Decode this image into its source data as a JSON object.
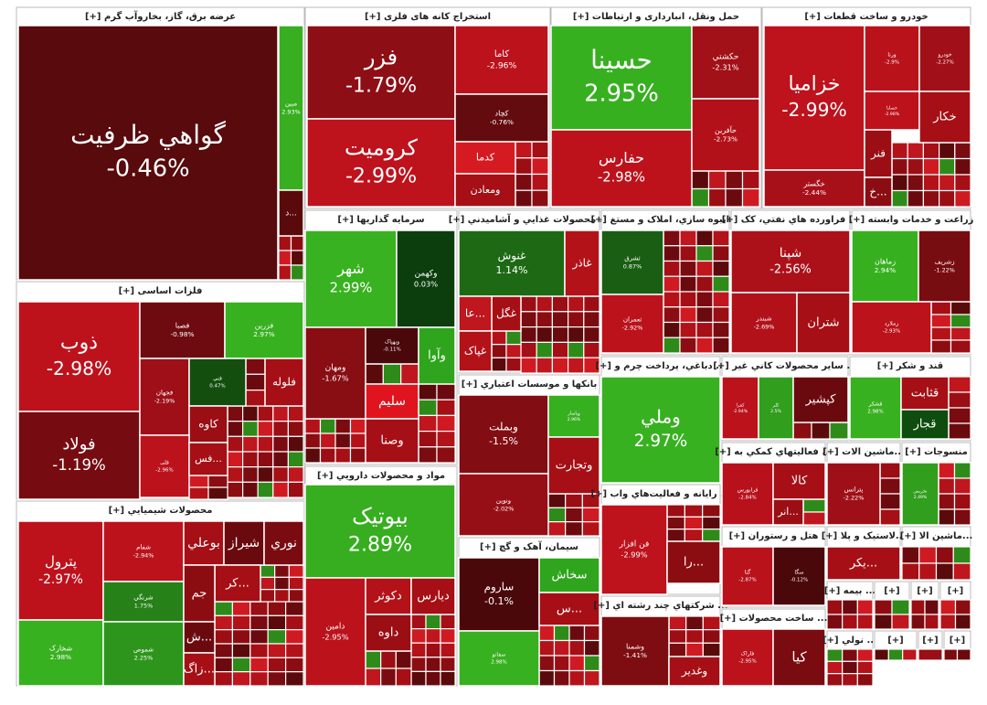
{
  "chart_data": {
    "type": "treemap",
    "sectors": [
      {
        "title": "عرضه برق، گاز، بخاروآب گرم [+]",
        "tiles": [
          {
            "name": "گواهي ظرفيت",
            "value": -0.46,
            "value_label": "-0.46%"
          },
          {
            "name": "مبين",
            "value": 2.93,
            "value_label": "2.93%"
          },
          {
            "name": "...د"
          }
        ]
      },
      {
        "title": "استخراج کانه های فلزی [+]",
        "tiles": [
          {
            "name": "فزر",
            "value": -1.79,
            "value_label": "-1.79%"
          },
          {
            "name": "کروميت",
            "value": -2.99,
            "value_label": "-2.99%"
          },
          {
            "name": "کاما",
            "value": -2.96,
            "value_label": "-2.96%"
          },
          {
            "name": "کچاد",
            "value": -0.76,
            "value_label": "-0.76%"
          },
          {
            "name": "کدما"
          },
          {
            "name": "ومعادن"
          }
        ]
      },
      {
        "title": "حمل ونقل، انبارداری و ارتباطات [+]",
        "tiles": [
          {
            "name": "حسينا",
            "value": 2.95,
            "value_label": "2.95%"
          },
          {
            "name": "حفارس",
            "value": -2.98,
            "value_label": "-2.98%"
          },
          {
            "name": "حکشتي",
            "value": -2.31,
            "value_label": "-2.31%"
          },
          {
            "name": "حآفرين",
            "value": -2.73,
            "value_label": "-2.73%"
          }
        ]
      },
      {
        "title": "خودرو و ساخت قطعات [+]",
        "tiles": [
          {
            "name": "خزاميا",
            "value": -2.99,
            "value_label": "-2.99%"
          },
          {
            "name": "خگستر",
            "value": -2.44,
            "value_label": "-2.44%"
          },
          {
            "name": "ورنا",
            "value": -2.9,
            "value_label": "-2.9%"
          },
          {
            "name": "خودرو",
            "value": -2.27,
            "value_label": "-2.27%"
          },
          {
            "name": "خساپا",
            "value": -2.98,
            "value_label": "-2.98%"
          },
          {
            "name": "خکار"
          },
          {
            "name": "فنر"
          },
          {
            "name": "...خ"
          }
        ]
      },
      {
        "title": "سرمايه گذاريها [+]",
        "tiles": [
          {
            "name": "شهر",
            "value": 2.99,
            "value_label": "2.99%"
          },
          {
            "name": "وکهمن",
            "value": 0.03,
            "value_label": "0.03%"
          },
          {
            "name": "ومهان",
            "value": -1.67,
            "value_label": "-1.67%"
          },
          {
            "name": "وبهپاک",
            "value": -0.11,
            "value_label": "-0.11%"
          },
          {
            "name": "وآوا"
          },
          {
            "name": "سليم"
          },
          {
            "name": "وصنا"
          }
        ]
      },
      {
        "title": "... محصولات غذايي و آشاميدني [+]",
        "tiles": [
          {
            "name": "غنوش",
            "value": 1.14,
            "value_label": "1.14%"
          },
          {
            "name": "غاذر"
          },
          {
            "name": "غگل"
          },
          {
            "name": "...عا"
          },
          {
            "name": "غپاک"
          }
        ]
      },
      {
        "title": "...انبوه سازي، املاک و مستغ [+]",
        "tiles": [
          {
            "name": "ثشرق",
            "value": 0.87,
            "value_label": "0.87%"
          },
          {
            "name": "ثعمران",
            "value": -2.92,
            "value_label": "-2.92%"
          }
        ]
      },
      {
        "title": "... فراورده هاي نفتي، کک [+]",
        "tiles": [
          {
            "name": "شپنا",
            "value": -2.56,
            "value_label": "-2.56%"
          },
          {
            "name": "شبندر",
            "value": -2.69,
            "value_label": "-2.69%"
          },
          {
            "name": "شتران"
          }
        ]
      },
      {
        "title": "زراعت و خدمات وابسته [+]",
        "tiles": [
          {
            "name": "زماهان",
            "value": 2.94,
            "value_label": "2.94%"
          },
          {
            "name": "زشريف",
            "value": -1.22,
            "value_label": "-1.22%"
          },
          {
            "name": "زملارد",
            "value": -2.93,
            "value_label": "-2.93%"
          }
        ]
      },
      {
        "title": "فلزات اساسی [+]",
        "tiles": [
          {
            "name": "ذوب",
            "value": -2.98,
            "value_label": "-2.98%"
          },
          {
            "name": "فولاد",
            "value": -1.19,
            "value_label": "-1.19%"
          },
          {
            "name": "فصبا",
            "value": -0.98,
            "value_label": "-0.98%"
          },
          {
            "name": "فزرين",
            "value": 2.97,
            "value_label": "2.97%"
          },
          {
            "name": "فجهان",
            "value": -2.19,
            "value_label": "-2.19%"
          },
          {
            "name": "فني",
            "value": 0.47,
            "value_label": "0.47%"
          },
          {
            "name": "فلوله"
          },
          {
            "name": "کاوه"
          },
          {
            "name": "فلی",
            "value": -2.96,
            "value_label": "-2.96%"
          },
          {
            "name": "...فس"
          }
        ]
      },
      {
        "title": "محصولات شيميايي [+]",
        "tiles": [
          {
            "name": "پترول",
            "value": -2.97,
            "value_label": "-2.97%"
          },
          {
            "name": "شخارک",
            "value": 2.98,
            "value_label": "2.98%"
          },
          {
            "name": "شفام",
            "value": -2.94,
            "value_label": "-2.94%"
          },
          {
            "name": "شرنگي",
            "value": 1.75,
            "value_label": "1.75%"
          },
          {
            "name": "شموص",
            "value": 2.25,
            "value_label": "2.25%"
          },
          {
            "name": "بوعلي"
          },
          {
            "name": "شيراز"
          },
          {
            "name": "نوري"
          },
          {
            "name": "...کر"
          },
          {
            "name": "جم"
          },
          {
            "name": "...ش"
          },
          {
            "name": "...زاگ"
          }
        ]
      },
      {
        "title": "بانکها و موسسات اعتباري [+]",
        "tiles": [
          {
            "name": "وبملت",
            "value": -1.5,
            "value_label": "-1.5%"
          },
          {
            "name": "ونوين",
            "value": -2.02,
            "value_label": "-2.02%"
          },
          {
            "name": "وپاسار",
            "value": 2.96,
            "value_label": "2.96%"
          },
          {
            "name": "وتجارت"
          }
        ]
      },
      {
        "title": "... دباغي، پرداخت چرم و [+]",
        "tiles": [
          {
            "name": "وملي",
            "value": 2.97,
            "value_label": "2.97%"
          }
        ]
      },
      {
        "title": "... ساير محصولات کاني غير [+]",
        "tiles": [
          {
            "name": "کفرا",
            "value": -2.94,
            "value_label": "-2.94%"
          },
          {
            "name": "کلر",
            "value": 2.5,
            "value_label": "2.5%"
          },
          {
            "name": "کپشير"
          }
        ]
      },
      {
        "title": "قند و شکر [+]",
        "tiles": [
          {
            "name": "قشکر",
            "value": 2.98,
            "value_label": "2.98%"
          },
          {
            "name": "قثابت"
          },
          {
            "name": "قجار"
          }
        ]
      },
      {
        "title": "مواد و محصولات دارويي [+]",
        "tiles": [
          {
            "name": "بيوتيک",
            "value": 2.89,
            "value_label": "2.89%"
          },
          {
            "name": "دامين",
            "value": -2.95,
            "value_label": "-2.95%"
          },
          {
            "name": "دکوثر"
          },
          {
            "name": "ديارس"
          },
          {
            "name": "داوه"
          }
        ]
      },
      {
        "title": "سيمان، آهک و گچ [+]",
        "tiles": [
          {
            "name": "ساروم",
            "value": -0.1,
            "value_label": "-0.1%"
          },
          {
            "name": "سفانو",
            "value": 2.98,
            "value_label": "2.98%"
          },
          {
            "name": "سخاش"
          },
          {
            "name": "...س"
          }
        ]
      },
      {
        "title": "... رايانه و فعاليت‌هاي واب [+]",
        "tiles": [
          {
            "name": "فن افزار",
            "value": -2.99,
            "value_label": "-2.99%"
          },
          {
            "name": "...را"
          }
        ]
      },
      {
        "title": "... شرکتهاي چند رشته اي [+]",
        "tiles": [
          {
            "name": "وشمنا",
            "value": -1.41,
            "value_label": "-1.41%"
          },
          {
            "name": "وغدير"
          }
        ]
      },
      {
        "title": "... فعاليتهاي کمکي به [+]",
        "tiles": [
          {
            "name": "فرابورس",
            "value": -2.84,
            "value_label": "-2.84%"
          },
          {
            "name": "کالا"
          },
          {
            "name": "...انر"
          }
        ]
      },
      {
        "title": "...ماشين الات [+]",
        "tiles": [
          {
            "name": "پترانس",
            "value": -2.22,
            "value_label": "-2.22%"
          }
        ]
      },
      {
        "title": "منسوجات [+]",
        "tiles": [
          {
            "name": "نخريس",
            "value": 2.49,
            "value_label": "2.49%"
          }
        ]
      },
      {
        "title": "هتل و رستوران [+]",
        "tiles": [
          {
            "name": "گنا",
            "value": -2.87,
            "value_label": "-2.87%"
          },
          {
            "name": "سگا",
            "value": -0.12,
            "value_label": "-0.12%"
          }
        ]
      },
      {
        "title": "... ساخت محصولات [+]",
        "tiles": [
          {
            "name": "فاراک",
            "value": -2.95,
            "value_label": "-2.95%"
          },
          {
            "name": "کيا"
          }
        ]
      },
      {
        "title": "...لاستيک و پلا [+]",
        "tiles": [
          {
            "name": "...يکر"
          }
        ]
      },
      {
        "title": "...ماشين الا [+]",
        "tiles": []
      },
      {
        "title": "... بيمه [+]",
        "tiles": []
      },
      {
        "title": "[+]",
        "tiles": []
      },
      {
        "title": "[+]",
        "tiles": []
      },
      {
        "title": "[+]",
        "tiles": []
      },
      {
        "title": "... نولي [+]",
        "tiles": []
      },
      {
        "title": "[+]",
        "tiles": []
      },
      {
        "title": "[+]",
        "tiles": []
      },
      {
        "title": "[+]",
        "tiles": []
      }
    ]
  }
}
